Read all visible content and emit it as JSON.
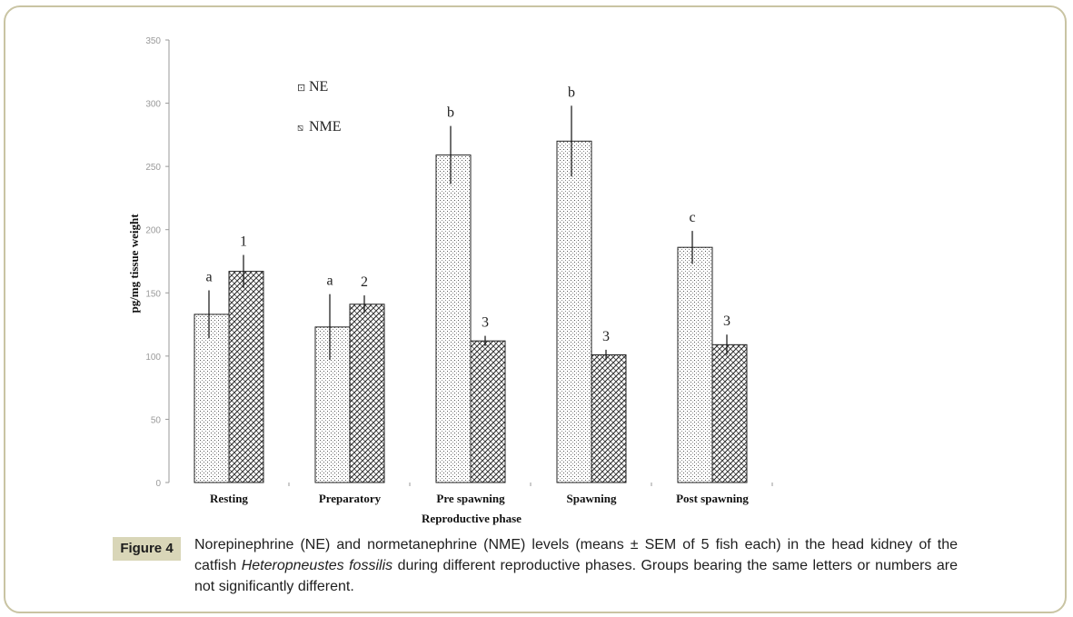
{
  "chart_data": {
    "type": "bar",
    "ylabel": "pg/mg tissue weight",
    "xlabel": "Reproductive phase",
    "ylim": [
      0,
      350
    ],
    "yticks": [
      0,
      50,
      100,
      150,
      200,
      250,
      300,
      350
    ],
    "categories": [
      "Resting",
      "Preparatory",
      "Pre spawning",
      "Spawning",
      "Post spawning"
    ],
    "series": [
      {
        "name": "NE",
        "legend_label": "NE",
        "legend_mark": "⊡",
        "values": [
          133,
          123,
          259,
          270,
          186
        ],
        "errors": [
          19,
          26,
          23,
          28,
          13
        ],
        "letters": [
          "a",
          "a",
          "b",
          "b",
          "c"
        ],
        "pattern": "dots"
      },
      {
        "name": "NME",
        "legend_label": "NME",
        "legend_mark": "⧅",
        "values": [
          167,
          141,
          112,
          101,
          109
        ],
        "errors": [
          13,
          7,
          4,
          4,
          8
        ],
        "letters": [
          "1",
          "2",
          "3",
          "3",
          "3"
        ],
        "pattern": "crosshatch"
      }
    ]
  },
  "caption": {
    "label": "Figure 4",
    "text_before_italic": "Norepinephrine (NE) and normetanephrine (NME) levels (means ± SEM of 5 fish each) in the head kidney of the catfish ",
    "italic": "Heteropneustes fossilis",
    "text_after_italic": " during different reproductive phases. Groups bearing the same letters or numbers are not significantly different."
  }
}
